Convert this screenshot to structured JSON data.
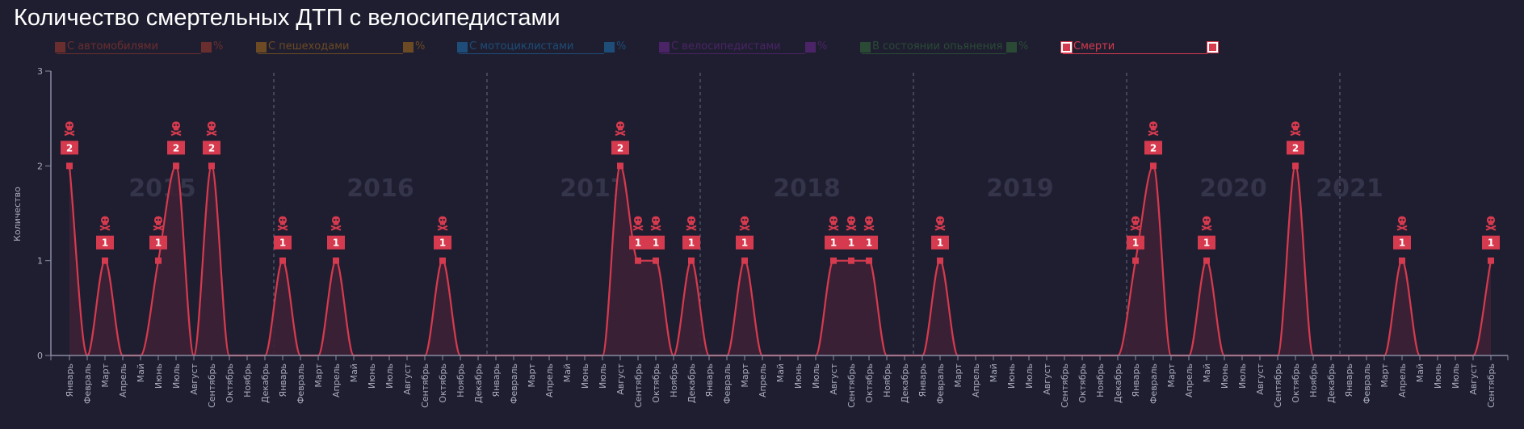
{
  "title": "Количество смертельных ДТП с велосипедистами",
  "legend": [
    {
      "label": "С автомобилями",
      "pct": "%",
      "color": "#6a2e2e",
      "active": false
    },
    {
      "label": "С пешеходами",
      "pct": "%",
      "color": "#6b4a24",
      "active": false
    },
    {
      "label": "С мотоциклистами",
      "pct": "%",
      "color": "#1d4d78",
      "active": false
    },
    {
      "label": "С велосипедистами",
      "pct": "%",
      "color": "#4a2466",
      "active": false
    },
    {
      "label": "В состоянии опьянения",
      "pct": "%",
      "color": "#2a4a36",
      "active": false
    },
    {
      "label": "Смерти",
      "pct": "",
      "color": "#d63a4e",
      "active": true
    }
  ],
  "colors": {
    "line": "#d63a4e",
    "fill": "#3d2035",
    "axis": "#8a8ca3",
    "background": "#1f1e30"
  },
  "chart_data": {
    "type": "area",
    "title": "Количество смертельных ДТП с велосипедистами",
    "xlabel": "",
    "ylabel": "Количество",
    "ylim": [
      0,
      3
    ],
    "yticks": [
      0,
      1,
      2,
      3
    ],
    "grid": false,
    "legend_position": "top",
    "icon": "skull-crossbones",
    "years": [
      "2015",
      "2016",
      "2017",
      "2018",
      "2019",
      "2020",
      "2021"
    ],
    "months": [
      "Январь",
      "Февраль",
      "Март",
      "Апрель",
      "Май",
      "Июнь",
      "Июль",
      "Август",
      "Сентябрь",
      "Октябрь",
      "Ноябрь",
      "Декабрь"
    ],
    "start": {
      "year": 2015,
      "month": 1
    },
    "end": {
      "year": 2021,
      "month": 9
    },
    "series": [
      {
        "name": "Смерти",
        "values": [
          2,
          0,
          1,
          0,
          0,
          1,
          2,
          0,
          2,
          0,
          0,
          0,
          1,
          0,
          0,
          1,
          0,
          0,
          0,
          0,
          0,
          1,
          0,
          0,
          0,
          0,
          0,
          0,
          0,
          0,
          0,
          2,
          1,
          1,
          0,
          1,
          0,
          0,
          1,
          0,
          0,
          0,
          0,
          1,
          1,
          1,
          0,
          0,
          0,
          1,
          0,
          0,
          0,
          0,
          0,
          0,
          0,
          0,
          0,
          0,
          1,
          2,
          0,
          0,
          1,
          0,
          0,
          0,
          0,
          2,
          0,
          0,
          0,
          0,
          0,
          1,
          0,
          0,
          0,
          0,
          1
        ]
      }
    ]
  }
}
